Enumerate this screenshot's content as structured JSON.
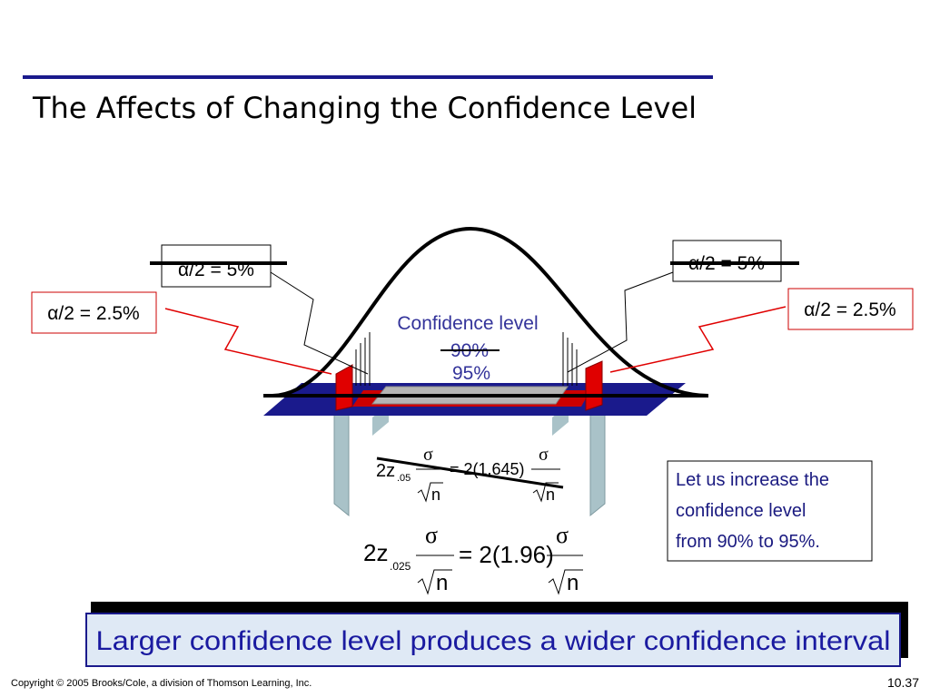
{
  "title": "The Affects of Changing the Confidence Level",
  "labels": {
    "left_inner": "α/2 = 5%",
    "right_inner": "α/2 = 5%",
    "left_outer": "α/2 = 2.5%",
    "right_outer": "α/2 = 2.5%"
  },
  "center": {
    "caption": "Confidence level",
    "old_level": "90%",
    "new_level": "95%"
  },
  "formula_90": {
    "lhs": "2z",
    "subscript": ".05",
    "sigma": "σ",
    "n": "n",
    "rhs": "= 2(1.645)"
  },
  "formula_95": {
    "lhs": "2z",
    "subscript": ".025",
    "sigma": "σ",
    "n": "n",
    "rhs": "= 2(1.96)"
  },
  "note": {
    "lines": [
      "Let us increase the",
      "confidence level",
      "from 90%  to 95%."
    ]
  },
  "banner": "Larger confidence level produces a wider confidence interval",
  "footer": {
    "copyright": "Copyright © 2005 Brooks/Cole, a division of Thomson Learning, Inc.",
    "page": "10.37"
  }
}
